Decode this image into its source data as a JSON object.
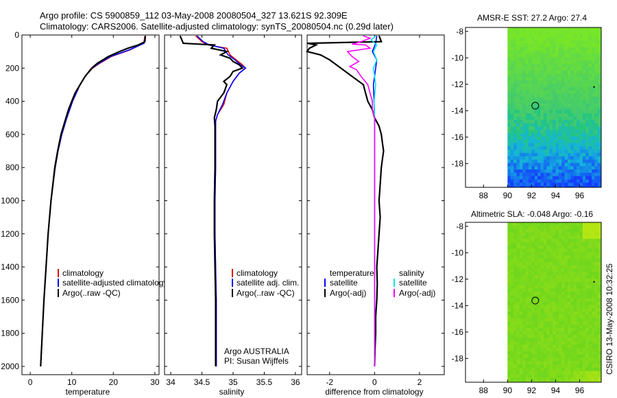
{
  "header": {
    "line1": "Argo profile: CS 5900859_112 03-May-2008 20080504_327 13.621S 92.309E",
    "line2": "Climatology: CARS2006. Satellite-adjusted climatology: synTS_20080504.nc (0.29d later)"
  },
  "side_label": "CSIRO 13-May-2008 10:32:25",
  "credit": {
    "line1": "Argo AUSTRALIA",
    "line2": "PI: Susan Wijffels"
  },
  "colors": {
    "climatology": "#e00000",
    "satellite": "#0000ff",
    "argo": "#000000",
    "satellite_diff": "#00e5ee",
    "argo_sal_diff": "#ff00ff"
  },
  "chart_data": [
    {
      "type": "line",
      "id": "temperature",
      "xlabel": "temperature",
      "ylabel": "",
      "xlim": [
        -2,
        31
      ],
      "ylim": [
        2050,
        0
      ],
      "xticks": [
        "0",
        "10",
        "20",
        "30"
      ],
      "xtick_values": [
        0,
        10,
        20,
        30
      ],
      "yticks": [
        "0",
        "200",
        "400",
        "600",
        "800",
        "1000",
        "1200",
        "1400",
        "1600",
        "1800",
        "2000"
      ],
      "ytick_values": [
        0,
        200,
        400,
        600,
        800,
        1000,
        1200,
        1400,
        1600,
        1800,
        2000
      ],
      "legend": [
        "climatology",
        "satellite-adjusted climatology",
        "Argo(..raw -QC)"
      ],
      "series": [
        {
          "name": "climatology",
          "color": "#e00000",
          "depth": [
            5,
            50,
            90,
            130,
            170,
            200,
            250,
            300,
            400,
            500,
            600,
            700,
            800,
            1000,
            1200,
            1400,
            1600,
            1800,
            2000
          ],
          "values": [
            27.6,
            27.3,
            24.0,
            19.5,
            16.8,
            15.0,
            13.2,
            12.0,
            10.2,
            8.8,
            7.6,
            6.7,
            6.0,
            5.0,
            4.3,
            3.8,
            3.3,
            2.9,
            2.5
          ]
        },
        {
          "name": "satellite-adjusted climatology",
          "color": "#0000ff",
          "depth": [
            5,
            50,
            90,
            130,
            170,
            200,
            250,
            300,
            400,
            500,
            600,
            700,
            800,
            1000,
            1200,
            1400,
            1600,
            1800,
            2000
          ],
          "values": [
            27.7,
            27.4,
            23.8,
            19.3,
            16.6,
            14.9,
            13.2,
            12.0,
            10.2,
            8.8,
            7.6,
            6.7,
            6.0,
            5.0,
            4.3,
            3.8,
            3.3,
            2.9,
            2.5
          ]
        },
        {
          "name": "Argo(..raw -QC)",
          "color": "#000000",
          "depth": [
            5,
            40,
            60,
            80,
            100,
            130,
            170,
            200,
            250,
            300,
            350,
            400,
            450,
            500,
            600,
            700,
            800,
            1000,
            1200,
            1400,
            1600,
            1800,
            2000
          ],
          "values": [
            27.7,
            27.6,
            26.0,
            23.5,
            21.5,
            18.8,
            16.2,
            14.8,
            13.2,
            12.0,
            10.8,
            10.0,
            9.2,
            8.6,
            7.4,
            6.6,
            5.9,
            5.0,
            4.3,
            3.8,
            3.3,
            2.9,
            2.5
          ]
        }
      ]
    },
    {
      "type": "line",
      "id": "salinity",
      "xlabel": "salinity",
      "xlim": [
        33.9,
        36.1
      ],
      "ylim": [
        2050,
        0
      ],
      "xticks": [
        "34",
        "34.5",
        "35",
        "35.5",
        "36"
      ],
      "xtick_values": [
        34,
        34.5,
        35,
        35.5,
        36
      ],
      "legend": [
        "climatology",
        "satellite adj. clim.",
        "Argo(..raw -QC)"
      ],
      "series": [
        {
          "name": "climatology",
          "color": "#e00000",
          "depth": [
            5,
            40,
            60,
            80,
            120,
            150,
            180,
            200,
            230,
            280,
            350,
            420,
            480,
            520,
            600,
            800,
            1000,
            1200,
            1400,
            1600,
            1800,
            2000
          ],
          "values": [
            34.4,
            34.5,
            34.6,
            34.9,
            34.95,
            35.05,
            35.15,
            35.2,
            35.1,
            35.0,
            34.9,
            34.85,
            34.75,
            34.72,
            34.72,
            34.72,
            34.71,
            34.71,
            34.72,
            34.73,
            34.73,
            34.73
          ]
        },
        {
          "name": "satellite adj. clim.",
          "color": "#0000ff",
          "depth": [
            5,
            40,
            60,
            80,
            120,
            150,
            180,
            200,
            230,
            280,
            350,
            420,
            480,
            520,
            600,
            800,
            1000,
            1200,
            1400,
            1600,
            1800,
            2000
          ],
          "values": [
            34.42,
            34.52,
            34.62,
            34.85,
            34.92,
            35.03,
            35.12,
            35.2,
            35.1,
            35.0,
            34.9,
            34.83,
            34.75,
            34.72,
            34.72,
            34.72,
            34.71,
            34.71,
            34.72,
            34.73,
            34.73,
            34.73
          ]
        },
        {
          "name": "Argo(..raw -QC)",
          "color": "#000000",
          "depth": [
            5,
            50,
            55,
            60,
            80,
            100,
            120,
            140,
            160,
            180,
            200,
            220,
            250,
            280,
            300,
            350,
            400,
            450,
            500,
            550,
            600,
            800,
            1000,
            1200,
            1400,
            1600,
            1800,
            2000
          ],
          "values": [
            34.15,
            34.2,
            34.45,
            34.7,
            34.65,
            34.9,
            34.8,
            34.95,
            35.0,
            35.1,
            35.15,
            35.0,
            34.95,
            34.85,
            34.9,
            34.85,
            34.75,
            34.73,
            34.7,
            34.71,
            34.71,
            34.71,
            34.7,
            34.7,
            34.71,
            34.72,
            34.72,
            34.72
          ]
        }
      ]
    },
    {
      "type": "line",
      "id": "difference",
      "xlabel": "difference from climatology",
      "xlim": [
        -3,
        3.1
      ],
      "ylim": [
        2050,
        0
      ],
      "xticks": [
        "-2",
        "0",
        "2"
      ],
      "xtick_values": [
        -2,
        0,
        2
      ],
      "legend_left_title": "temperature",
      "legend_right_title": "salinity",
      "legend_left": [
        "satellite",
        "Argo(-adj)"
      ],
      "legend_right": [
        "satellite",
        "Argo(-adj)"
      ],
      "series": [
        {
          "name": "temperature satellite",
          "color": "#0000ff",
          "depth": [
            5,
            50,
            100,
            150,
            200,
            300,
            500,
            700,
            1000,
            1500,
            2000
          ],
          "values": [
            0.1,
            0.05,
            -0.1,
            0.1,
            0.05,
            -0.05,
            0.0,
            0.0,
            0.0,
            0.0,
            0.0
          ]
        },
        {
          "name": "temperature Argo(-adj)",
          "color": "#000000",
          "depth": [
            5,
            40,
            50,
            60,
            80,
            100,
            120,
            150,
            200,
            250,
            300,
            350,
            400,
            450,
            500,
            550,
            600,
            650,
            700,
            750,
            800,
            900,
            1000,
            1100,
            1200,
            1300,
            1400,
            1500,
            1600,
            1700,
            1800,
            1900,
            2000
          ],
          "values": [
            0.2,
            0.3,
            -3.0,
            -2.6,
            -2.9,
            -3.0,
            -2.4,
            -2.0,
            -1.5,
            -1.0,
            -0.5,
            -0.4,
            -0.3,
            -0.1,
            0.0,
            0.2,
            0.3,
            0.35,
            0.4,
            0.35,
            0.3,
            0.25,
            0.2,
            0.25,
            0.2,
            0.15,
            0.1,
            0.12,
            0.1,
            0.05,
            0.05,
            0.02,
            0.0
          ]
        },
        {
          "name": "salinity satellite",
          "color": "#00e5ee",
          "depth": [
            5,
            30,
            60,
            100,
            150,
            200,
            300,
            400,
            500,
            700,
            1000,
            1500,
            2000
          ],
          "values": [
            0.05,
            -0.15,
            0.1,
            -0.05,
            0.1,
            -0.05,
            0.05,
            -0.02,
            0.0,
            0.0,
            0.0,
            0.0,
            0.0
          ]
        },
        {
          "name": "salinity Argo(-adj)",
          "color": "#ff00ff",
          "depth": [
            5,
            20,
            40,
            55,
            60,
            80,
            100,
            130,
            160,
            190,
            210,
            250,
            300,
            350,
            400,
            450,
            500,
            600,
            800,
            1000,
            1200,
            1500,
            1800,
            2000
          ],
          "values": [
            -0.5,
            -0.2,
            -0.6,
            -1.0,
            -0.4,
            -0.2,
            -1.2,
            -1.0,
            -0.7,
            -1.1,
            -0.8,
            -0.6,
            -0.3,
            -0.2,
            -0.1,
            -0.1,
            0.0,
            0.0,
            0.0,
            0.0,
            0.0,
            0.0,
            0.0,
            0.0
          ]
        }
      ]
    },
    {
      "type": "heatmap",
      "id": "sst_map",
      "title": "AMSR-E SST: 27.2 Argo: 27.4",
      "xlim": [
        86.5,
        97.8
      ],
      "ylim": [
        -19.8,
        -7.7
      ],
      "xticks": [
        "88",
        "90",
        "92",
        "94",
        "96"
      ],
      "xtick_values": [
        88,
        90,
        92,
        94,
        96
      ],
      "yticks": [
        "-8",
        "-10",
        "-12",
        "-14",
        "-16",
        "-18"
      ],
      "ytick_values": [
        -8,
        -10,
        -12,
        -14,
        -16,
        -18
      ],
      "data_lon_start": 90,
      "argo_position": {
        "lon": 92.309,
        "lat": -13.621
      },
      "extra_point": {
        "lon": 97.2,
        "lat": -12.2
      }
    },
    {
      "type": "heatmap",
      "id": "sla_map",
      "title": "Altimetric SLA: -0.048 Argo: -0.16",
      "xlim": [
        86.5,
        97.8
      ],
      "ylim": [
        -19.8,
        -7.7
      ],
      "xticks": [
        "88",
        "90",
        "92",
        "94",
        "96"
      ],
      "xtick_values": [
        88,
        90,
        92,
        94,
        96
      ],
      "yticks": [
        "-8",
        "-10",
        "-12",
        "-14",
        "-16",
        "-18"
      ],
      "ytick_values": [
        -8,
        -10,
        -12,
        -14,
        -16,
        -18
      ],
      "data_lon_start": 90,
      "argo_position": {
        "lon": 92.309,
        "lat": -13.621
      },
      "extra_point": {
        "lon": 97.2,
        "lat": -12.2
      }
    }
  ]
}
